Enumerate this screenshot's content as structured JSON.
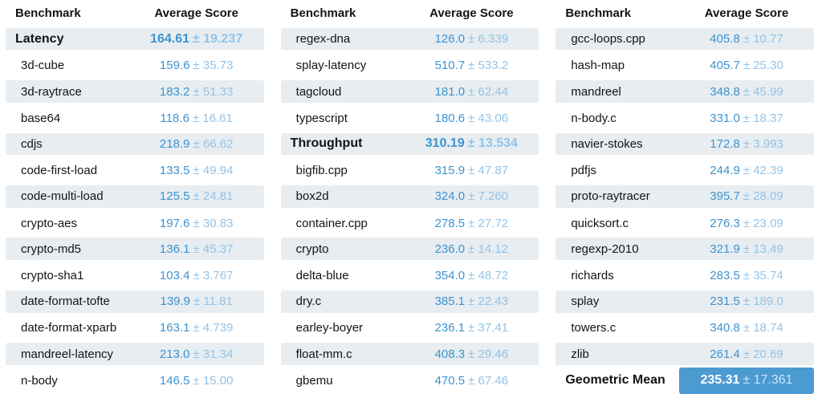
{
  "colors": {
    "row_stripe": "#e7edf1",
    "score_value_blue": "#3e93cf",
    "score_error_blue": "#94c3e6",
    "highlight_cell_blue": "#4c9ad2",
    "highlight_value_text": "#ffffff",
    "highlight_error_text": "#cfe4f4",
    "label_text": "#141414"
  },
  "chart_data": {
    "type": "table",
    "column_headers": {
      "benchmark": "Benchmark",
      "score": "Average Score"
    },
    "tables": [
      {
        "headers": {
          "benchmark": "Benchmark",
          "score": "Average Score"
        },
        "rows": [
          {
            "label": "Latency",
            "value": "164.61",
            "error": "± 19.237",
            "style": "section"
          },
          {
            "label": "3d-cube",
            "value": "159.6",
            "error": "± 35.73",
            "style": "item"
          },
          {
            "label": "3d-raytrace",
            "value": "183.2",
            "error": "± 51.33",
            "style": "item"
          },
          {
            "label": "base64",
            "value": "118.6",
            "error": "± 16.61",
            "style": "item"
          },
          {
            "label": "cdjs",
            "value": "218.9",
            "error": "± 66.62",
            "style": "item"
          },
          {
            "label": "code-first-load",
            "value": "133.5",
            "error": "± 49.94",
            "style": "item"
          },
          {
            "label": "code-multi-load",
            "value": "125.5",
            "error": "± 24.81",
            "style": "item"
          },
          {
            "label": "crypto-aes",
            "value": "197.6",
            "error": "± 30.83",
            "style": "item"
          },
          {
            "label": "crypto-md5",
            "value": "136.1",
            "error": "± 45.37",
            "style": "item"
          },
          {
            "label": "crypto-sha1",
            "value": "103.4",
            "error": "± 3.767",
            "style": "item"
          },
          {
            "label": "date-format-tofte",
            "value": "139.9",
            "error": "± 11.81",
            "style": "item"
          },
          {
            "label": "date-format-xparb",
            "value": "163.1",
            "error": "± 4.739",
            "style": "item"
          },
          {
            "label": "mandreel-latency",
            "value": "213.0",
            "error": "± 31.34",
            "style": "item"
          },
          {
            "label": "n-body",
            "value": "146.5",
            "error": "± 15.00",
            "style": "item"
          }
        ]
      },
      {
        "headers": {
          "benchmark": "Benchmark",
          "score": "Average Score"
        },
        "rows": [
          {
            "label": "regex-dna",
            "value": "126.0",
            "error": "± 6.339",
            "style": "item"
          },
          {
            "label": "splay-latency",
            "value": "510.7",
            "error": "± 533.2",
            "style": "item"
          },
          {
            "label": "tagcloud",
            "value": "181.0",
            "error": "± 62.44",
            "style": "item"
          },
          {
            "label": "typescript",
            "value": "180.6",
            "error": "± 43.06",
            "style": "item"
          },
          {
            "label": "Throughput",
            "value": "310.19",
            "error": "± 13.534",
            "style": "section"
          },
          {
            "label": "bigfib.cpp",
            "value": "315.9",
            "error": "± 47.87",
            "style": "item"
          },
          {
            "label": "box2d",
            "value": "324.0",
            "error": "± 7.260",
            "style": "item"
          },
          {
            "label": "container.cpp",
            "value": "278.5",
            "error": "± 27.72",
            "style": "item"
          },
          {
            "label": "crypto",
            "value": "236.0",
            "error": "± 14.12",
            "style": "item"
          },
          {
            "label": "delta-blue",
            "value": "354.0",
            "error": "± 48.72",
            "style": "item"
          },
          {
            "label": "dry.c",
            "value": "385.1",
            "error": "± 22.43",
            "style": "item"
          },
          {
            "label": "earley-boyer",
            "value": "236.1",
            "error": "± 37.41",
            "style": "item"
          },
          {
            "label": "float-mm.c",
            "value": "408.3",
            "error": "± 29.46",
            "style": "item"
          },
          {
            "label": "gbemu",
            "value": "470.5",
            "error": "± 67.46",
            "style": "item"
          }
        ]
      },
      {
        "headers": {
          "benchmark": "Benchmark",
          "score": "Average Score"
        },
        "rows": [
          {
            "label": "gcc-loops.cpp",
            "value": "405.8",
            "error": "± 10.77",
            "style": "item"
          },
          {
            "label": "hash-map",
            "value": "405.7",
            "error": "± 25.30",
            "style": "item"
          },
          {
            "label": "mandreel",
            "value": "348.8",
            "error": "± 45.99",
            "style": "item"
          },
          {
            "label": "n-body.c",
            "value": "331.0",
            "error": "± 18.37",
            "style": "item"
          },
          {
            "label": "navier-stokes",
            "value": "172.8",
            "error": "± 3.993",
            "style": "item"
          },
          {
            "label": "pdfjs",
            "value": "244.9",
            "error": "± 42.39",
            "style": "item"
          },
          {
            "label": "proto-raytracer",
            "value": "395.7",
            "error": "± 28.09",
            "style": "item"
          },
          {
            "label": "quicksort.c",
            "value": "276.3",
            "error": "± 23.09",
            "style": "item"
          },
          {
            "label": "regexp-2010",
            "value": "321.9",
            "error": "± 13.49",
            "style": "item"
          },
          {
            "label": "richards",
            "value": "283.5",
            "error": "± 35.74",
            "style": "item"
          },
          {
            "label": "splay",
            "value": "231.5",
            "error": "± 189.0",
            "style": "item"
          },
          {
            "label": "towers.c",
            "value": "340.8",
            "error": "± 18.74",
            "style": "item"
          },
          {
            "label": "zlib",
            "value": "261.4",
            "error": "± 20.69",
            "style": "item"
          },
          {
            "label": "Geometric Mean",
            "value": "235.31",
            "error": "± 17.361",
            "style": "total"
          }
        ]
      }
    ]
  }
}
